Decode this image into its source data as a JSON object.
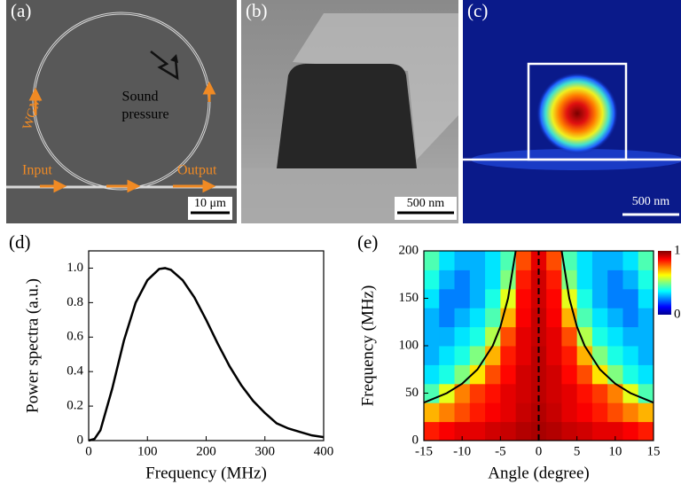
{
  "panels": [
    {
      "label": "(a)",
      "annotations": [
        "Sound",
        "pressure",
        "WGM",
        "Input",
        "Output"
      ],
      "scalebar": "10 μm"
    },
    {
      "label": "(b)",
      "scalebar": "500 nm"
    },
    {
      "label": "(c)",
      "scalebar": "500 nm"
    }
  ],
  "chart_data": [
    {
      "type": "line",
      "panel_label": "(d)",
      "xlabel": "Frequency (MHz)",
      "ylabel": "Power spectra (a.u.)",
      "x": [
        0,
        10,
        20,
        40,
        60,
        80,
        100,
        120,
        130,
        140,
        160,
        180,
        200,
        220,
        240,
        260,
        280,
        300,
        320,
        340,
        360,
        380,
        400
      ],
      "series": [
        {
          "color": "#000000",
          "values": [
            0,
            0.01,
            0.06,
            0.3,
            0.58,
            0.8,
            0.93,
            0.995,
            1.0,
            0.99,
            0.93,
            0.83,
            0.7,
            0.56,
            0.43,
            0.32,
            0.23,
            0.16,
            0.1,
            0.07,
            0.05,
            0.03,
            0.02
          ]
        }
      ],
      "xlim": [
        0,
        400
      ],
      "xticks": [
        0,
        100,
        200,
        300,
        400
      ],
      "ylim": [
        0,
        1.1
      ],
      "yticks": [
        0,
        0.2,
        0.4,
        0.6,
        0.8,
        {
          "value": 1,
          "label": "1.0"
        }
      ]
    },
    {
      "type": "heatmap",
      "panel_label": "(e)",
      "xlabel": "Angle (degree)",
      "ylabel": "Frequency (MHz)",
      "x": [
        -14,
        -12,
        -10,
        -8,
        -6,
        -4,
        -2,
        0,
        2,
        4,
        6,
        8,
        10,
        12,
        14
      ],
      "y": [
        10,
        30,
        50,
        70,
        90,
        110,
        130,
        150,
        170,
        190
      ],
      "z": [
        [
          0.85,
          0.88,
          0.9,
          0.9,
          0.92,
          0.93,
          0.95,
          0.96,
          0.95,
          0.93,
          0.92,
          0.9,
          0.9,
          0.88,
          0.85
        ],
        [
          0.7,
          0.75,
          0.8,
          0.85,
          0.88,
          0.9,
          0.93,
          0.95,
          0.93,
          0.9,
          0.88,
          0.85,
          0.8,
          0.75,
          0.7
        ],
        [
          0.45,
          0.6,
          0.75,
          0.82,
          0.86,
          0.9,
          0.92,
          0.94,
          0.92,
          0.9,
          0.86,
          0.82,
          0.75,
          0.6,
          0.45
        ],
        [
          0.35,
          0.4,
          0.5,
          0.65,
          0.8,
          0.87,
          0.92,
          0.94,
          0.92,
          0.87,
          0.8,
          0.65,
          0.5,
          0.4,
          0.35
        ],
        [
          0.3,
          0.35,
          0.4,
          0.5,
          0.7,
          0.85,
          0.9,
          0.94,
          0.9,
          0.85,
          0.7,
          0.5,
          0.4,
          0.35,
          0.3
        ],
        [
          0.3,
          0.3,
          0.35,
          0.4,
          0.55,
          0.8,
          0.9,
          0.93,
          0.9,
          0.8,
          0.55,
          0.4,
          0.35,
          0.3,
          0.3
        ],
        [
          0.3,
          0.25,
          0.3,
          0.35,
          0.45,
          0.7,
          0.88,
          0.93,
          0.88,
          0.7,
          0.45,
          0.35,
          0.3,
          0.25,
          0.3
        ],
        [
          0.35,
          0.25,
          0.25,
          0.3,
          0.4,
          0.6,
          0.87,
          0.92,
          0.87,
          0.6,
          0.4,
          0.3,
          0.25,
          0.25,
          0.35
        ],
        [
          0.4,
          0.3,
          0.25,
          0.3,
          0.35,
          0.5,
          0.85,
          0.92,
          0.85,
          0.5,
          0.35,
          0.3,
          0.25,
          0.3,
          0.4
        ],
        [
          0.45,
          0.35,
          0.3,
          0.3,
          0.35,
          0.45,
          0.8,
          0.9,
          0.8,
          0.45,
          0.35,
          0.3,
          0.3,
          0.35,
          0.45
        ]
      ],
      "curves": [
        {
          "color": "#000000",
          "x": [
            -15,
            -12,
            -10,
            -8,
            -6,
            -5,
            -4,
            -3
          ],
          "values": [
            40,
            50,
            60,
            75,
            100,
            120,
            150,
            200
          ]
        },
        {
          "color": "#000000",
          "x": [
            3,
            4,
            5,
            6,
            8,
            10,
            12,
            15
          ],
          "values": [
            200,
            150,
            120,
            100,
            75,
            60,
            50,
            40
          ]
        }
      ],
      "vline": 0,
      "xlim": [
        -15,
        15
      ],
      "xticks": [
        -15,
        -10,
        -5,
        0,
        5,
        10,
        15
      ],
      "ylim": [
        0,
        200
      ],
      "yticks": [
        0,
        50,
        100,
        150,
        200
      ],
      "clim": [
        0,
        1
      ],
      "cticks": [
        0,
        1
      ]
    }
  ]
}
